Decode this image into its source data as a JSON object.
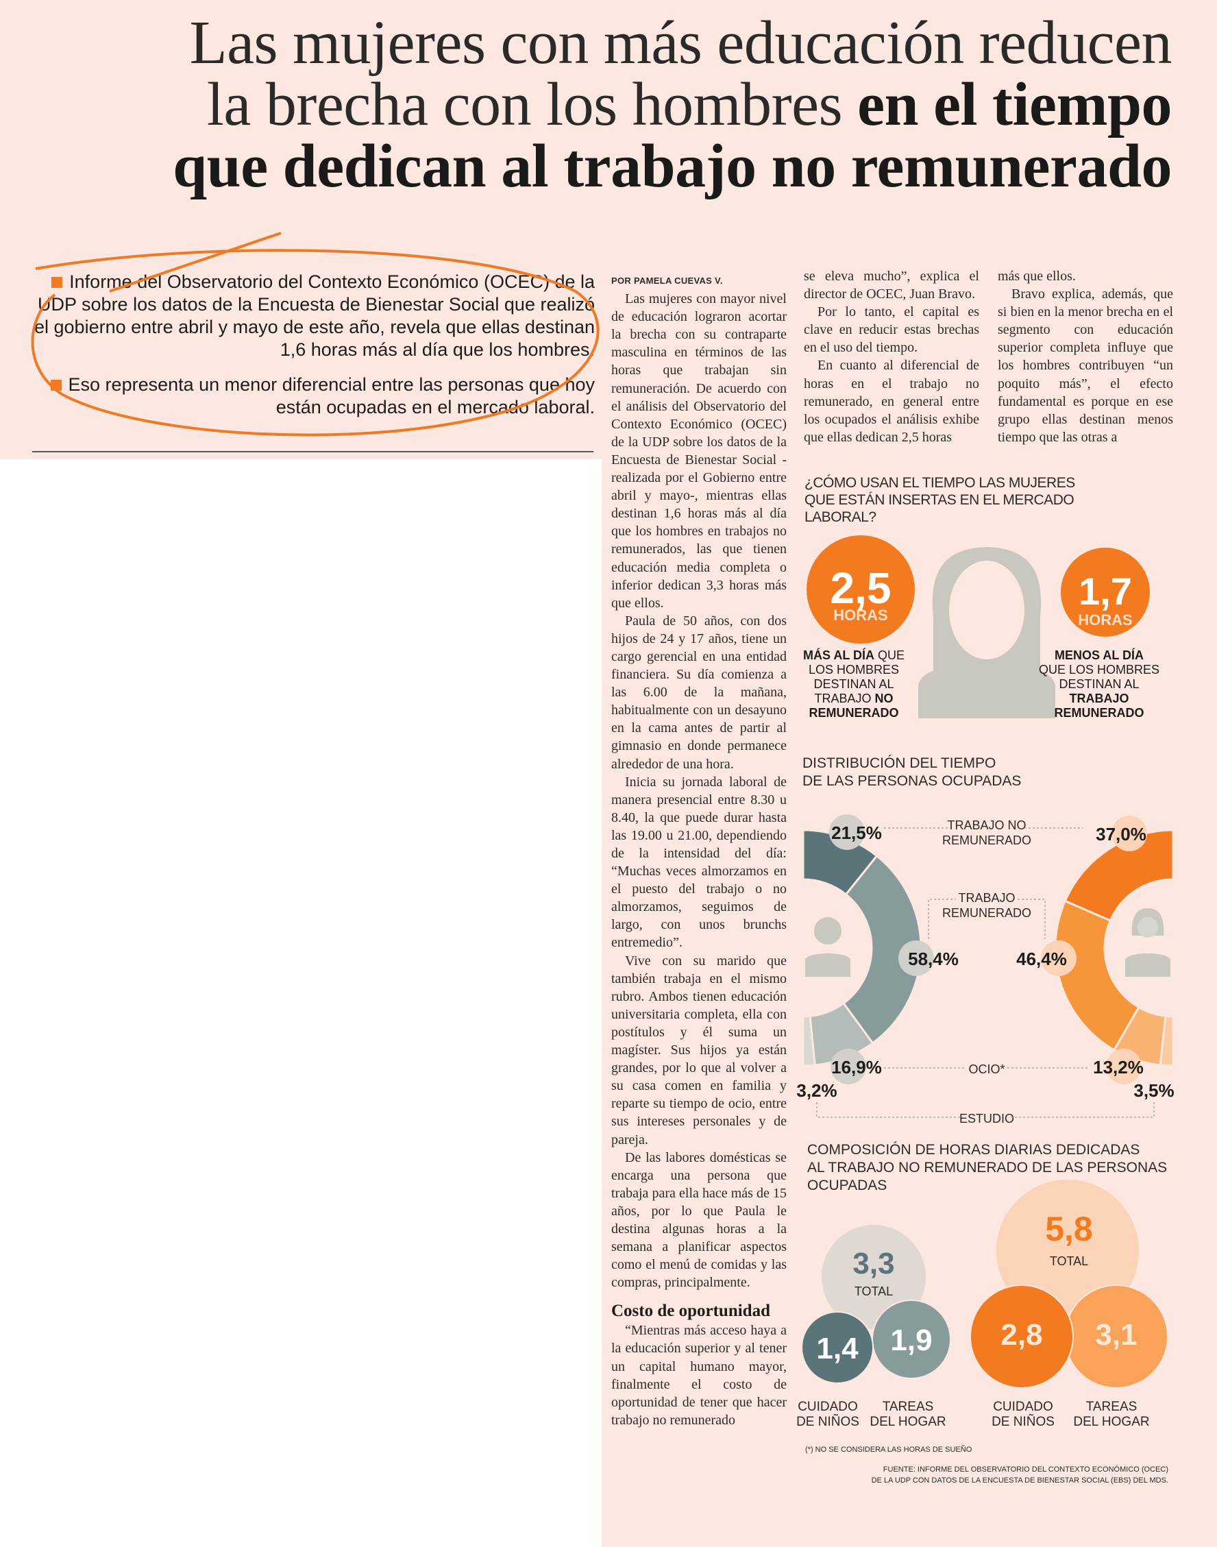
{
  "headline": {
    "line1": "Las mujeres con más educación reducen",
    "line2_light": "la brecha con los hombres ",
    "line2_bold": "en el tiempo",
    "line3_bold": "que dedican al trabajo no remunerado"
  },
  "deck": [
    "Informe del Observatorio del Contexto Económico (OCEC) de la UDP sobre los datos de la Encuesta de Bienestar Social que realizó el gobierno entre abril y mayo de este año, revela que ellas destinan 1,6 horas más al día que los hombres.",
    "Eso representa un menor diferencial entre las personas que hoy están ocupadas en el mercado laboral."
  ],
  "article": {
    "byline": "POR PAMELA CUEVAS V.",
    "col1": [
      "Las mujeres con mayor nivel de educación lograron acortar la brecha con su contraparte masculina en términos de las horas que trabajan sin remuneración. De acuerdo con el análisis del Observatorio del Contexto Económico (OCEC) de la UDP sobre los datos de la Encuesta de Bienestar Social -realizada por el Gobierno entre abril y mayo-, mientras ellas destinan 1,6 horas más al día que los hombres en trabajos no remunerados, las que tienen educación media completa o inferior dedican 3,3 horas más que ellos.",
      "Paula de 50 años, con dos hijos de 24 y 17 años, tiene un cargo gerencial en una entidad financiera. Su día comienza a las 6.00 de la mañana, habitualmente con un desayuno en la cama antes de partir al gimnasio en donde permanece alrededor de una hora.",
      "Inicia su jornada laboral de manera presencial entre 8.30 u 8.40, la que puede durar hasta las 19.00 u 21.00, dependiendo de la intensidad del día: “Muchas veces almorzamos en el puesto del trabajo o no almorzamos, seguimos de largo, con unos brunchs entremedio”.",
      "Vive con su marido que también trabaja en el mismo rubro. Ambos tienen educación universitaria completa, ella con postítulos y él suma un magíster. Sus hijos ya están grandes, por lo que al volver a su casa comen en familia y reparte su tiempo de ocio, entre sus intereses personales y de pareja.",
      "De las labores domésticas se encarga una persona que trabaja para ella hace más de 15 años, por lo que Paula le destina algunas horas a la semana a planificar aspectos como el menú de comidas y las compras, principalmente."
    ],
    "subhead": "Costo de oportunidad",
    "col1_after": "“Mientras más acceso haya a la educación superior y al tener un capital humano mayor, finalmente el costo de oportunidad de tener que hacer trabajo no remunerado",
    "col2": [
      "se eleva mucho”, explica el director de OCEC, Juan Bravo.",
      "Por lo tanto, el capital es clave en reducir estas brechas en el uso del tiempo.",
      "En cuanto al diferencial de horas en el trabajo no remunerado, en general entre los ocupados el análisis exhibe que ellas dedican 2,5 horas"
    ],
    "col3": [
      "más que ellos.",
      "Bravo explica, además, que si bien en la menor brecha en el segmento con educación superior completa influye que los hombres contribuyen “un poquito más”, el efecto fundamental es porque en ese grupo ellas destinan menos tiempo que las otras a"
    ]
  },
  "infographics": {
    "usage": {
      "title": "¿CÓMO USAN EL TIEMPO LAS MUJERES QUE ESTÁN INSERTAS EN EL MERCADO LABORAL?",
      "left": {
        "value": "2,5",
        "unit": "HORAS",
        "caption_bold": "MÁS AL DÍA",
        "caption1": " QUE",
        "caption2": "LOS HOMBRES",
        "caption3": "DESTINAN AL",
        "caption4": "TRABAJO ",
        "caption4_bold": "NO",
        "caption5_bold": "REMUNERADO"
      },
      "right": {
        "value": "1,7",
        "unit": "HORAS",
        "caption_bold": "MENOS AL DÍA",
        "caption2": "QUE LOS HOMBRES",
        "caption3": "DESTINAN AL",
        "caption4_bold": "TRABAJO",
        "caption5_bold": "REMUNERADO"
      }
    },
    "distribution": {
      "title_line1": "DISTRIBUCIÓN DEL TIEMPO",
      "title_line2": "DE LAS PERSONAS OCUPADAS",
      "categories": [
        "TRABAJO NO REMUNERADO",
        "TRABAJO REMUNERADO",
        "OCIO*",
        "ESTUDIO"
      ],
      "cat_labels": {
        "unpaid1": "TRABAJO NO",
        "unpaid2": "REMUNERADO",
        "paid1": "TRABAJO",
        "paid2": "REMUNERADO",
        "leisure": "OCIO*",
        "study": "ESTUDIO"
      },
      "men": {
        "values": [
          21.5,
          58.4,
          16.9,
          3.2
        ],
        "labels": [
          "21,5%",
          "58,4%",
          "16,9%",
          "3,2%"
        ],
        "colors": [
          "#5b747a",
          "#879c9a",
          "#b3bcb8",
          "#d8d8d2"
        ]
      },
      "women": {
        "values": [
          37.0,
          46.4,
          13.2,
          3.5
        ],
        "labels": [
          "37,0%",
          "46,4%",
          "13,2%",
          "3,5%"
        ],
        "colors": [
          "#f47a1f",
          "#f7953a",
          "#f9b272",
          "#fbcaa0"
        ]
      }
    },
    "composition": {
      "title_line1": "COMPOSICIÓN DE HORAS DIARIAS DEDICADAS",
      "title_line2": "AL TRABAJO NO REMUNERADO DE LAS PERSONAS",
      "title_line3": "OCUPADAS",
      "men": {
        "total": "3,3",
        "total_label": "TOTAL",
        "childcare": "1,4",
        "housework": "1,9"
      },
      "women": {
        "total": "5,8",
        "total_label": "TOTAL",
        "childcare": "2,8",
        "housework": "3,1"
      },
      "label_childcare1": "CUIDADO",
      "label_childcare2": "DE NIÑOS",
      "label_housework1": "TAREAS",
      "label_housework2": "DEL HOGAR"
    },
    "footnote": "(*) NO SE CONSIDERA LAS HORAS DE SUEÑO",
    "source_line1": "FUENTE: INFORME DEL OBSERVATORIO DEL CONTEXTO ECONÓMICO (OCEC)",
    "source_line2": "DE LA UDP CON DATOS DE LA ENCUESTA DE BIENESTAR SOCIAL (EBS) DEL MDS."
  },
  "colors": {
    "background": "#fce8e0",
    "accent": "#f47a1f",
    "slate": "#5b747a"
  }
}
